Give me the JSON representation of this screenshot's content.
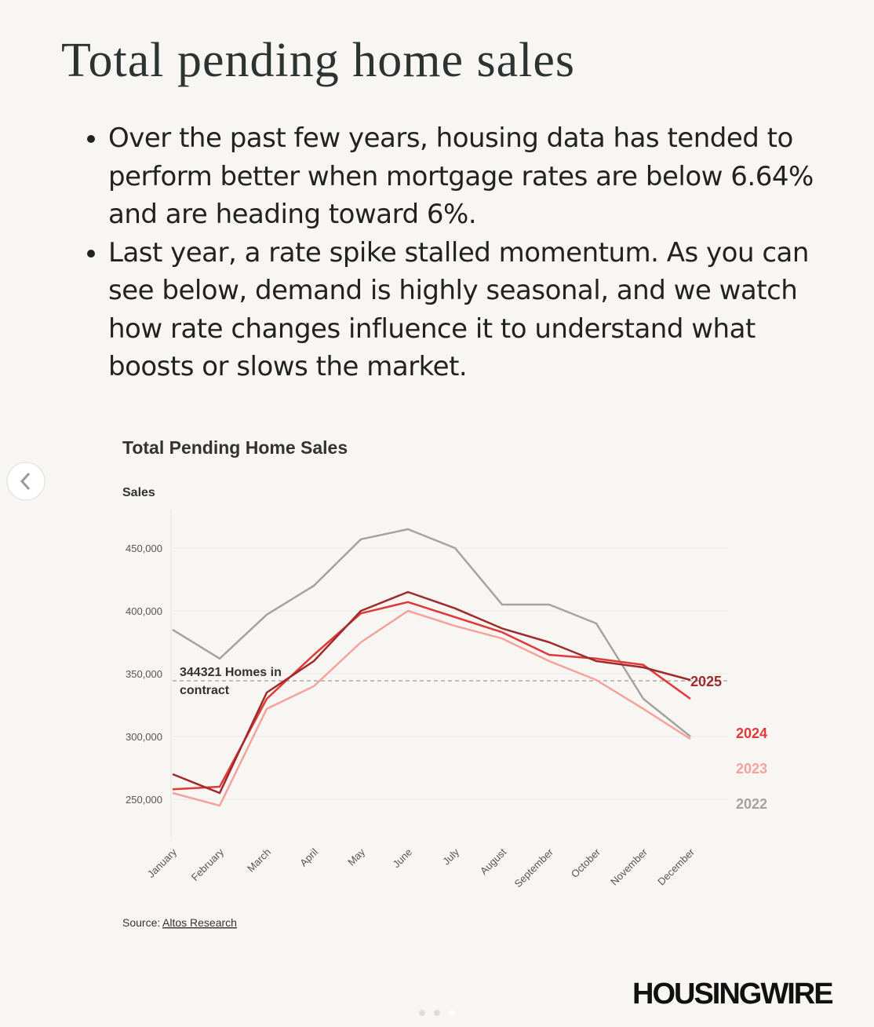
{
  "header": {
    "title": "Total pending home sales"
  },
  "bullets": [
    "Over the past few years, housing data has tended to perform better when mortgage rates are below 6.64% and are heading toward 6%.",
    "Last year, a rate spike stalled momentum. As you can see below, demand is highly seasonal, and we watch how rate changes influence it to understand what boosts or slows the market."
  ],
  "chart_data": {
    "type": "line",
    "title": "Total Pending Home Sales",
    "y_label": "Sales",
    "categories": [
      "January",
      "February",
      "March",
      "April",
      "May",
      "June",
      "July",
      "August",
      "September",
      "October",
      "November",
      "December"
    ],
    "series": [
      {
        "name": "2022",
        "color": "#a3a3a3",
        "values": [
          385000,
          362000,
          397000,
          420000,
          457000,
          465000,
          450000,
          405000,
          405000,
          390000,
          330000,
          300000
        ]
      },
      {
        "name": "2023",
        "color": "#f5a29d",
        "values": [
          255000,
          245000,
          322000,
          340000,
          375000,
          400000,
          388000,
          378000,
          360000,
          345000,
          322000,
          298000
        ]
      },
      {
        "name": "2024",
        "color": "#e0393a",
        "values": [
          258000,
          260000,
          330000,
          365000,
          398000,
          407000,
          395000,
          383000,
          365000,
          362000,
          357000,
          330000
        ]
      },
      {
        "name": "2025",
        "color": "#9e2a2b",
        "values": [
          270000,
          255000,
          335000,
          360000,
          400000,
          415000,
          402000,
          386000,
          375000,
          360000,
          355000,
          345000
        ]
      }
    ],
    "ylim": [
      220000,
      480000
    ],
    "yticks": [
      {
        "value": 250000,
        "label": "250,000"
      },
      {
        "value": 300000,
        "label": "300,000"
      },
      {
        "value": 350000,
        "label": "350,000"
      },
      {
        "value": 400000,
        "label": "400,000"
      },
      {
        "value": 450000,
        "label": "450,000"
      }
    ],
    "grid": true,
    "reference_line": {
      "value": 344321,
      "label": "344321 Homes in contract"
    },
    "source_prefix": "Source:",
    "source": "Altos Research"
  },
  "brand": "HOUSINGWIRE"
}
